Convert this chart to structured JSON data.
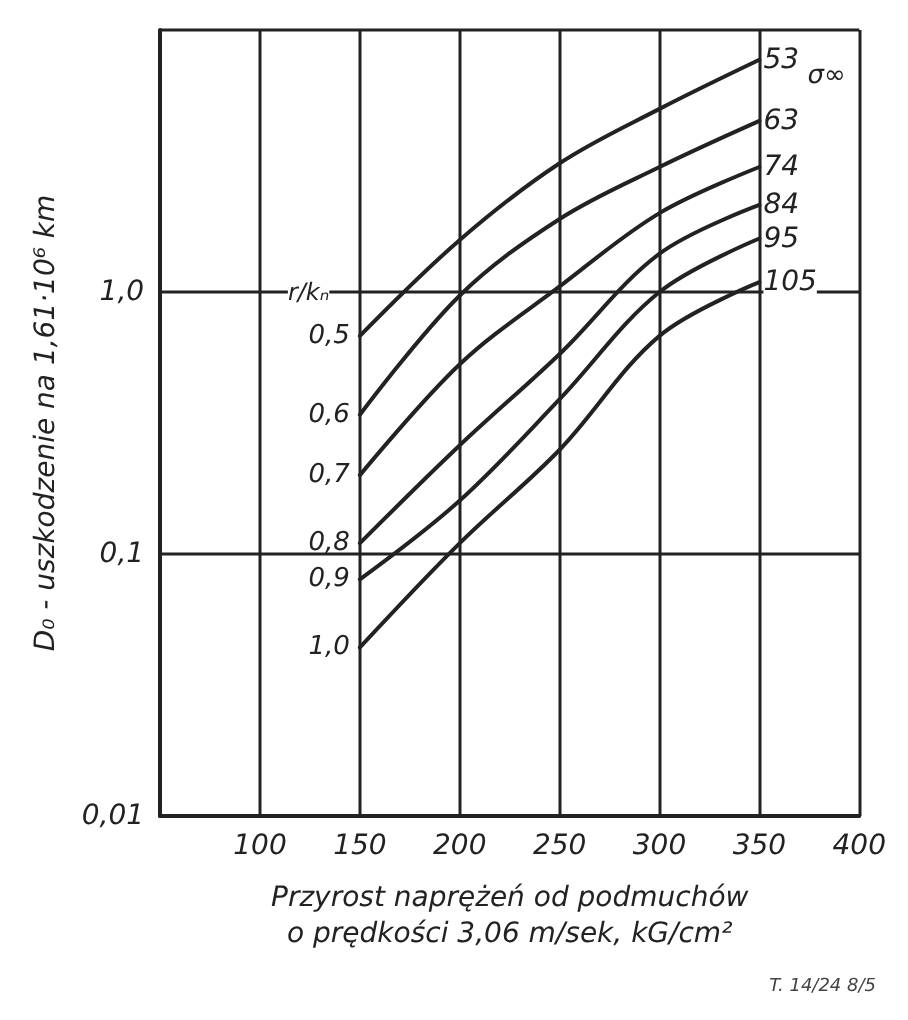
{
  "chart_data": {
    "type": "line",
    "xlabel": "Przyrost naprężeń od podmuchów\no prędkości 3,06 m/sek, kG/cm²",
    "ylabel": "D₀ - uszkodzenie na 1,61·10⁶ km",
    "x": [
      150,
      200,
      250,
      300,
      350
    ],
    "series": [
      {
        "name": "0,5",
        "color": "#222222",
        "values": [
          0.68,
          1.58,
          3.1,
          5.0,
          7.7
        ]
      },
      {
        "name": "0,6",
        "color": "#222222",
        "values": [
          0.34,
          0.97,
          1.9,
          3.0,
          4.5
        ]
      },
      {
        "name": "0,7",
        "color": "#222222",
        "values": [
          0.2,
          0.53,
          1.05,
          2.0,
          3.0
        ]
      },
      {
        "name": "0,8",
        "color": "#222222",
        "values": [
          0.11,
          0.26,
          0.58,
          1.4,
          2.15
        ]
      },
      {
        "name": "0,9",
        "color": "#222222",
        "values": [
          0.08,
          0.16,
          0.39,
          1.0,
          1.6
        ]
      },
      {
        "name": "1,0",
        "color": "#222222",
        "values": [
          0.044,
          0.11,
          0.25,
          0.68,
          1.09
        ]
      }
    ],
    "annotations": [
      "53",
      "63",
      "74",
      "84",
      "95",
      "105",
      "σ∞",
      "r/kₙ",
      "T. 14/24 8/5"
    ],
    "xlim": [
      50,
      400
    ],
    "xticks": [
      100,
      150,
      200,
      250,
      300,
      350,
      400
    ],
    "ylim": [
      0.01,
      10
    ],
    "yticks": [
      {
        "value": 0.01,
        "label": "0,01"
      },
      {
        "value": 0.1,
        "label": "0,1"
      },
      {
        "value": 1,
        "label": "1,0"
      },
      {
        "value": 10,
        "label": null
      }
    ],
    "log": true,
    "grid": true,
    "legend": false,
    "marker": "none",
    "line_style": "solid"
  }
}
